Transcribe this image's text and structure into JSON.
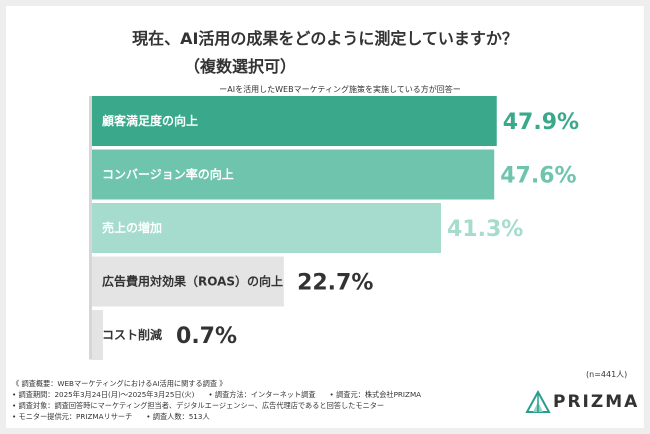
{
  "title": "現在、AI活用の成果をどのように測定していますか？",
  "subtitle": "（複数選択可）",
  "note": "ーAIを活用したWEBマーケティング施策を実施している方が回答ー",
  "n_label": "(n=441人)",
  "footer": {
    "survey_overview": "《 調査概要：WEBマーケティングにおけるAI活用に関する調査 》",
    "period": "• 調査期間：2025年3月24日(月)〜2025年3月25日(火)",
    "method": "• 調査方法：インターネット調査",
    "source": "• 調査元：株式会社PRIZMA",
    "target": "• 調査対象：調査回答時にマーケティング担当者、デジタルエージェンシー、広告代理店であると回答したモニター",
    "provider": "• モニター提供元：PRIZMAリサーチ",
    "count": "• 調査人数：513人"
  },
  "logo": {
    "text": "PRIZMA",
    "icon": "prism-mountain-icon"
  },
  "chart_data": {
    "type": "bar",
    "orientation": "horizontal",
    "unit": "%",
    "xlim": [
      0,
      100
    ],
    "categories": [
      "顧客満足度の向上",
      "コンバージョン率の向上",
      "売上の増加",
      "広告費用対効果（ROAS）の向上",
      "コスト削減"
    ],
    "values": [
      47.9,
      47.6,
      41.3,
      22.7,
      0.7
    ],
    "value_labels": [
      "47.9%",
      "47.6%",
      "41.3%",
      "22.7%",
      "0.7%"
    ],
    "bar_colors": [
      "#3aa88a",
      "#6fc4ad",
      "#a5dccd",
      "#e4e4e4",
      "#e4e4e4"
    ],
    "label_colors": [
      "#ffffff",
      "#ffffff",
      "#ffffff",
      "#333333",
      "#333333"
    ],
    "value_colors": [
      "#3aa88a",
      "#6fc4ad",
      "#a5dccd",
      "#333333",
      "#333333"
    ]
  }
}
